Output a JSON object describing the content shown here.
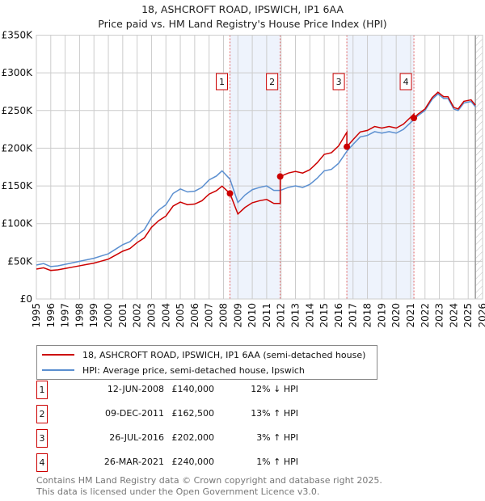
{
  "chart_data": {
    "type": "line",
    "title": "18, ASHCROFT ROAD, IPSWICH, IP1 6AA",
    "subtitle": "Price paid vs. HM Land Registry's House Price Index (HPI)",
    "xlim": [
      1995,
      2026
    ],
    "ylim": [
      0,
      350000
    ],
    "y_ticks": [
      {
        "v": 0,
        "label": "£0"
      },
      {
        "v": 50000,
        "label": "£50K"
      },
      {
        "v": 100000,
        "label": "£100K"
      },
      {
        "v": 150000,
        "label": "£150K"
      },
      {
        "v": 200000,
        "label": "£200K"
      },
      {
        "v": 250000,
        "label": "£250K"
      },
      {
        "v": 300000,
        "label": "£300K"
      },
      {
        "v": 350000,
        "label": "£350K"
      }
    ],
    "x_ticks": [
      "1995",
      "1996",
      "1997",
      "1998",
      "1999",
      "2000",
      "2001",
      "2002",
      "2003",
      "2004",
      "2005",
      "2006",
      "2007",
      "2008",
      "2009",
      "2010",
      "2011",
      "2012",
      "2013",
      "2014",
      "2015",
      "2016",
      "2017",
      "2018",
      "2019",
      "2020",
      "2021",
      "2022",
      "2023",
      "2024",
      "2025",
      "2026"
    ],
    "grid": true,
    "hpi_series": {
      "name": "HPI: Average price, semi-detached house, Ipswich",
      "color": "#5b8fd0",
      "x": [
        1995,
        1995.5,
        1996,
        1996.5,
        1997,
        1997.5,
        1998,
        1998.5,
        1999,
        1999.5,
        2000,
        2000.5,
        2001,
        2001.5,
        2002,
        2002.5,
        2003,
        2003.5,
        2004,
        2004.5,
        2005,
        2005.5,
        2006,
        2006.5,
        2007,
        2007.5,
        2007.9,
        2008.45,
        2009,
        2009.5,
        2010,
        2010.5,
        2011,
        2011.5,
        2011.94,
        2012.5,
        2013,
        2013.5,
        2014,
        2014.5,
        2015,
        2015.5,
        2016,
        2016.57,
        2017,
        2017.5,
        2018,
        2018.5,
        2019,
        2019.5,
        2020,
        2020.5,
        2021.23,
        2021.5,
        2022,
        2022.5,
        2022.9,
        2023.3,
        2023.6,
        2024,
        2024.3,
        2024.7,
        2025.2,
        2025.5
      ],
      "y": [
        45000,
        47000,
        43000,
        44000,
        46000,
        48000,
        50000,
        52000,
        54000,
        57000,
        60000,
        66000,
        72000,
        76000,
        85000,
        92000,
        108000,
        118000,
        125000,
        140000,
        146000,
        142000,
        143000,
        148000,
        158000,
        163000,
        170000,
        159000,
        128000,
        138000,
        145000,
        148000,
        150000,
        144000,
        144000,
        148000,
        150000,
        148000,
        152000,
        160000,
        170000,
        172000,
        180000,
        196000,
        205000,
        215000,
        217000,
        222000,
        220000,
        222000,
        220000,
        225000,
        238000,
        243000,
        250000,
        265000,
        272000,
        266000,
        266000,
        252000,
        250000,
        260000,
        262000,
        255000
      ]
    },
    "property_series": {
      "name": "18, ASHCROFT ROAD, IPSWICH, IP1 6AA (semi-detached house)",
      "color": "#cc0000"
    },
    "sales": [
      {
        "n": "1",
        "x": 2008.45,
        "date": "12-JUN-2008",
        "price": 140000,
        "price_label": "£140,000",
        "hpi": "12% ↓ HPI"
      },
      {
        "n": "2",
        "x": 2011.94,
        "date": "09-DEC-2011",
        "price": 162500,
        "price_label": "£162,500",
        "hpi": "13% ↑ HPI"
      },
      {
        "n": "3",
        "x": 2016.57,
        "date": "26-JUL-2016",
        "price": 202000,
        "price_label": "£202,000",
        "hpi": "3% ↑ HPI"
      },
      {
        "n": "4",
        "x": 2021.23,
        "date": "26-MAR-2021",
        "price": 240000,
        "price_label": "£240,000",
        "hpi": "1% ↑ HPI"
      }
    ],
    "forecast_start": 2025.5,
    "legend_position": "bottom"
  },
  "footer": {
    "line1": "Contains HM Land Registry data © Crown copyright and database right 2025.",
    "line2": "This data is licensed under the Open Government Licence v3.0."
  }
}
